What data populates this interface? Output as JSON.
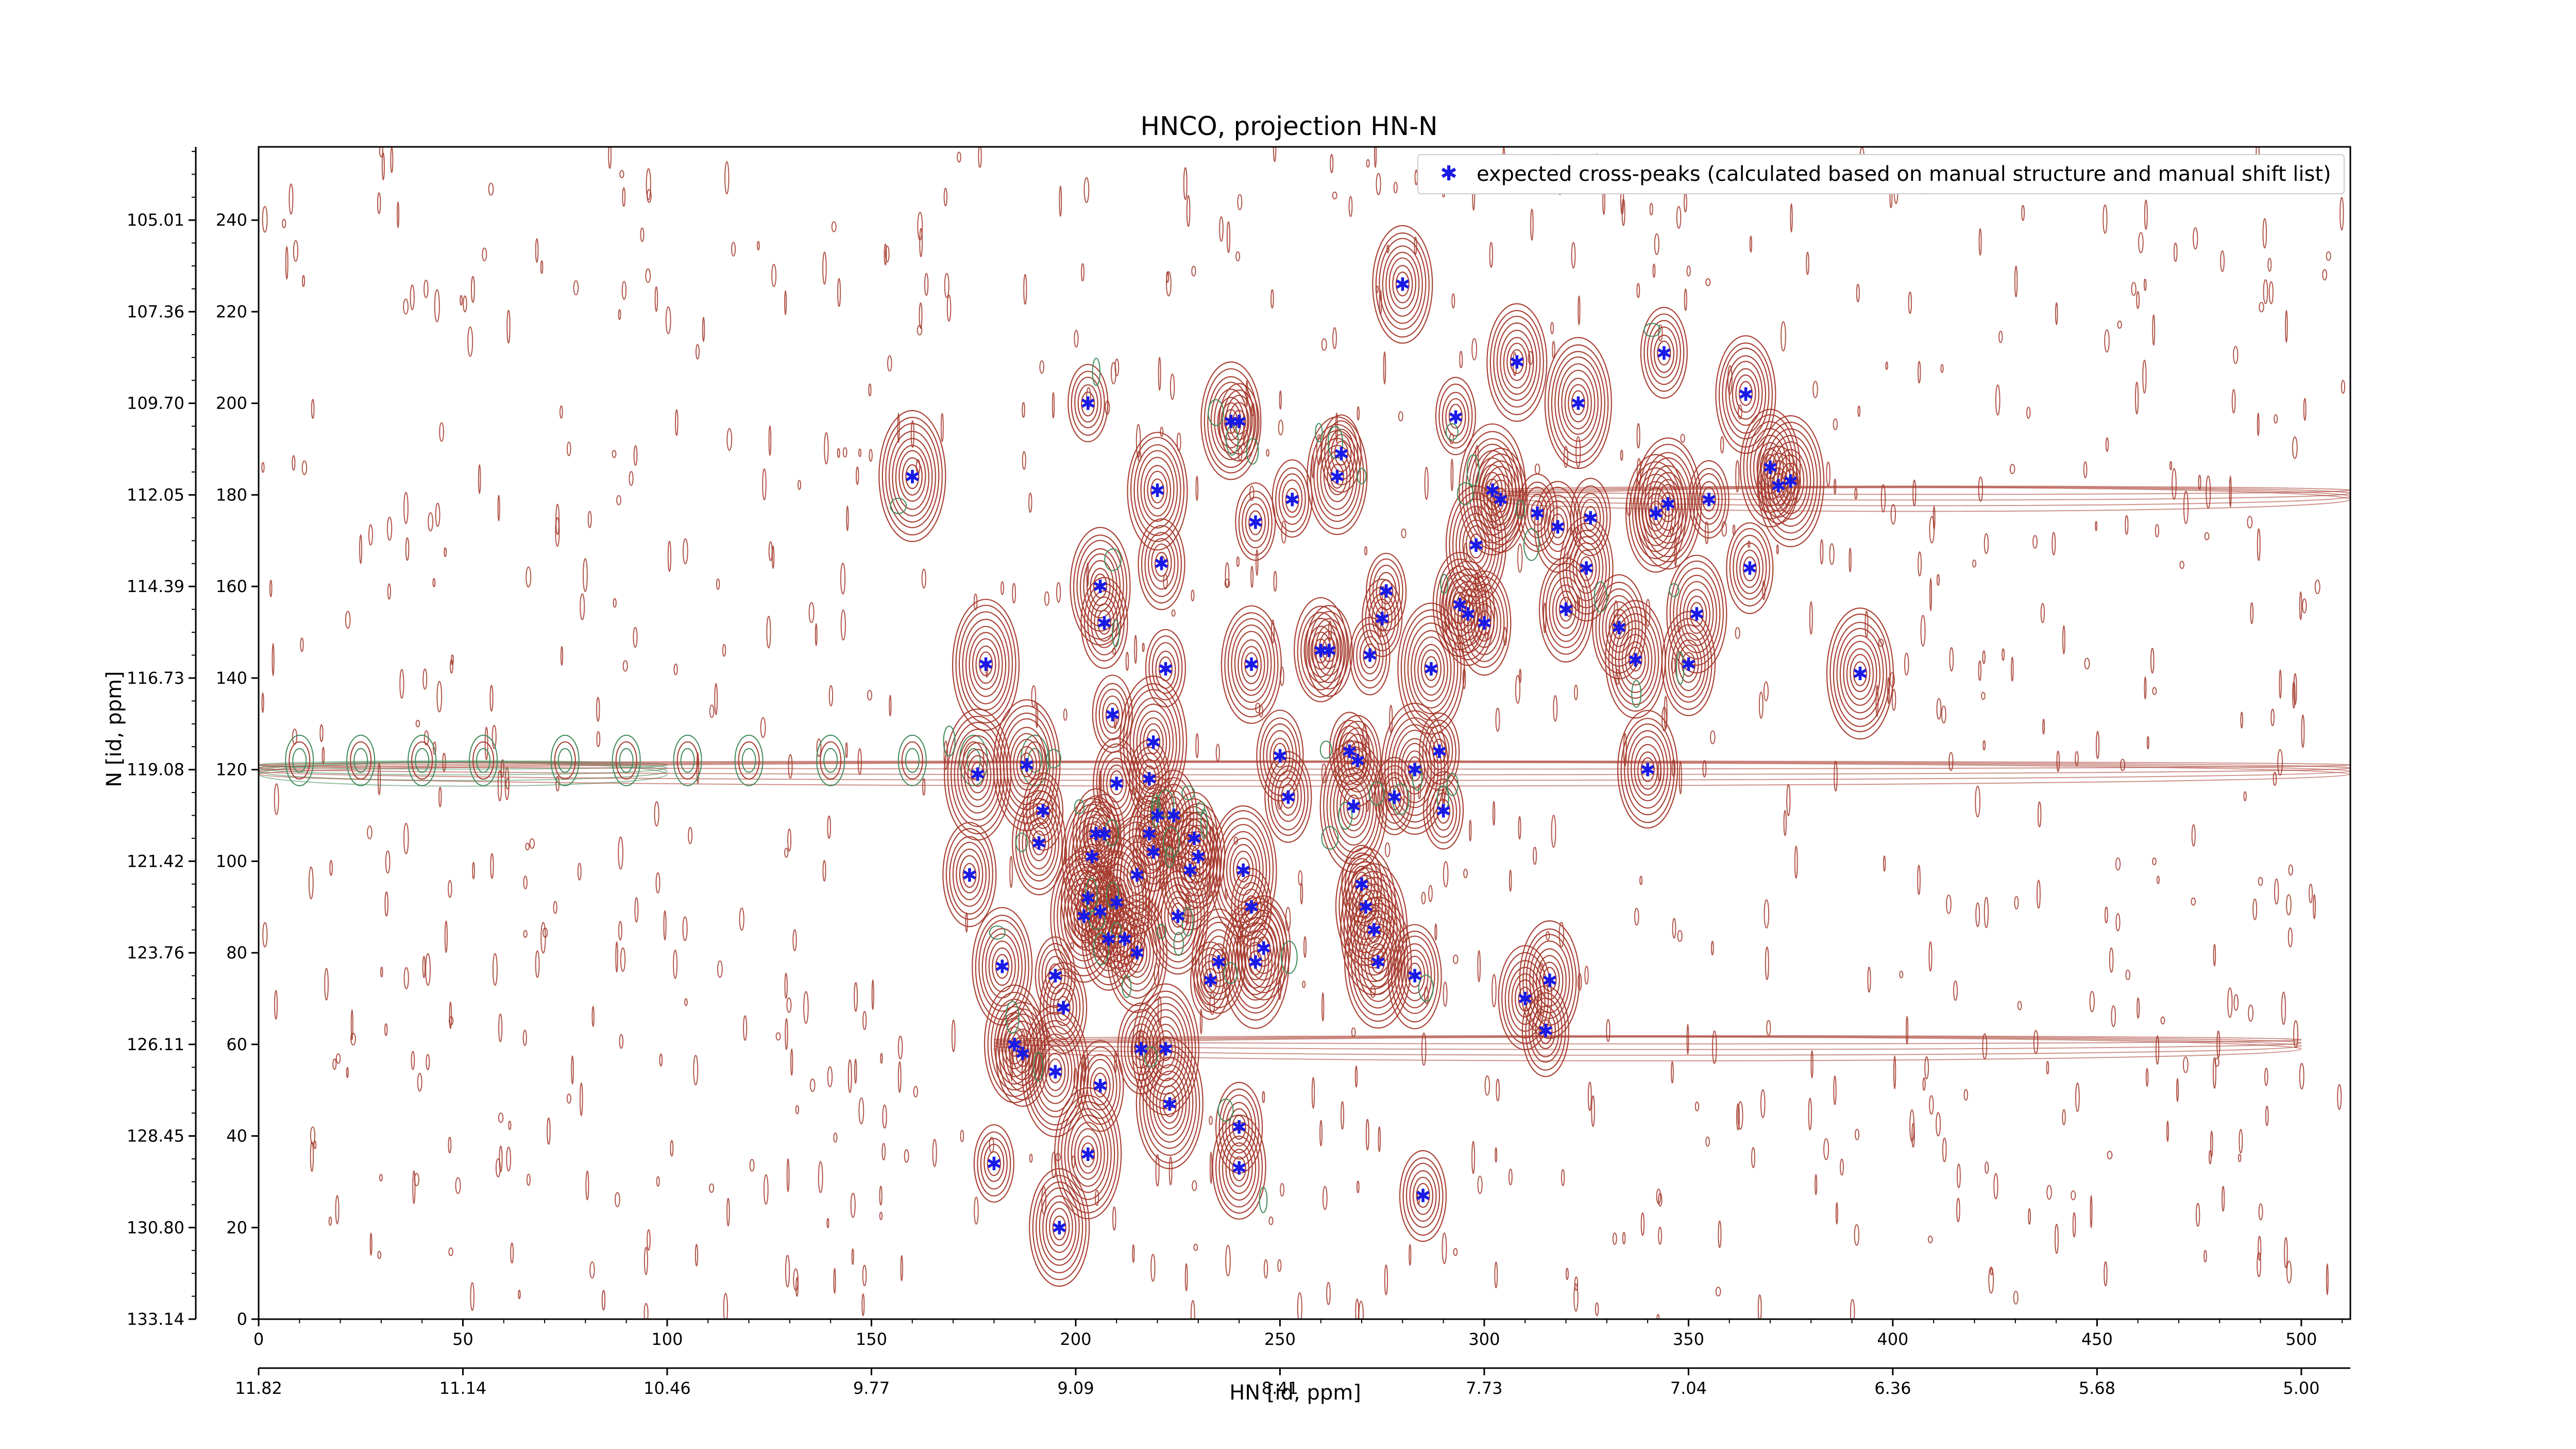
{
  "chart_data": {
    "type": "scatter",
    "title": "HNCO, projection HN-N",
    "xlabel": "HN [id, ppm]",
    "ylabel": "N [id, ppm]",
    "xlim": [
      0,
      512
    ],
    "ylim": [
      0,
      256
    ],
    "x_ticks": [
      0,
      50,
      100,
      150,
      200,
      250,
      300,
      350,
      400,
      450,
      500
    ],
    "y_ticks": [
      0,
      20,
      40,
      60,
      80,
      100,
      120,
      140,
      160,
      180,
      200,
      220,
      240
    ],
    "x_ppm_ticks": [
      "11.82",
      "11.14",
      "10.46",
      "9.77",
      "9.09",
      "8.41",
      "7.73",
      "7.04",
      "6.36",
      "5.68",
      "5.00"
    ],
    "y_ppm_ticks": [
      "133.14",
      "130.80",
      "128.45",
      "126.11",
      "123.76",
      "121.42",
      "119.08",
      "116.73",
      "114.39",
      "112.05",
      "109.70",
      "107.36",
      "105.01"
    ],
    "legend": {
      "label": "expected cross-peaks (calculated based on manual structure and manual shift list)",
      "position": "top-right"
    },
    "colors": {
      "peaks": "#1a1ae6",
      "contour_positive": "#a5392c",
      "contour_negative": "#3f8a5a"
    },
    "series": [
      {
        "name": "expected cross-peaks (calculated based on manual structure and manual shift list)",
        "points": [
          [
            160,
            184
          ],
          [
            178,
            143
          ],
          [
            176,
            119
          ],
          [
            174,
            97
          ],
          [
            182,
            77
          ],
          [
            185,
            60
          ],
          [
            187,
            58
          ],
          [
            180,
            34
          ],
          [
            188,
            121
          ],
          [
            191,
            104
          ],
          [
            192,
            111
          ],
          [
            195,
            75
          ],
          [
            195,
            54
          ],
          [
            197,
            68
          ],
          [
            196,
            20
          ],
          [
            202,
            88
          ],
          [
            203,
            92
          ],
          [
            204,
            101
          ],
          [
            205,
            106
          ],
          [
            206,
            89
          ],
          [
            207,
            106
          ],
          [
            208,
            83
          ],
          [
            210,
            91
          ],
          [
            203,
            200
          ],
          [
            203,
            36
          ],
          [
            206,
            51
          ],
          [
            206,
            160
          ],
          [
            207,
            152
          ],
          [
            209,
            132
          ],
          [
            210,
            117
          ],
          [
            212,
            83
          ],
          [
            215,
            80
          ],
          [
            215,
            97
          ],
          [
            216,
            59
          ],
          [
            218,
            106
          ],
          [
            218,
            118
          ],
          [
            219,
            102
          ],
          [
            219,
            126
          ],
          [
            220,
            110
          ],
          [
            220,
            181
          ],
          [
            221,
            165
          ],
          [
            222,
            142
          ],
          [
            222,
            59
          ],
          [
            223,
            47
          ],
          [
            224,
            110
          ],
          [
            225,
            88
          ],
          [
            228,
            98
          ],
          [
            229,
            105
          ],
          [
            230,
            101
          ],
          [
            233,
            74
          ],
          [
            240,
            42
          ],
          [
            240,
            33
          ],
          [
            235,
            78
          ],
          [
            238,
            196
          ],
          [
            240,
            196
          ],
          [
            241,
            98
          ],
          [
            243,
            90
          ],
          [
            243,
            143
          ],
          [
            244,
            174
          ],
          [
            244,
            78
          ],
          [
            246,
            81
          ],
          [
            250,
            123
          ],
          [
            252,
            114
          ],
          [
            253,
            179
          ],
          [
            260,
            146
          ],
          [
            262,
            146
          ],
          [
            264,
            184
          ],
          [
            265,
            189
          ],
          [
            267,
            124
          ],
          [
            268,
            112
          ],
          [
            269,
            122
          ],
          [
            270,
            95
          ],
          [
            271,
            90
          ],
          [
            272,
            145
          ],
          [
            273,
            85
          ],
          [
            274,
            78
          ],
          [
            275,
            153
          ],
          [
            276,
            159
          ],
          [
            278,
            114
          ],
          [
            280,
            226
          ],
          [
            283,
            120
          ],
          [
            285,
            27
          ],
          [
            283,
            75
          ],
          [
            287,
            142
          ],
          [
            289,
            124
          ],
          [
            290,
            111
          ],
          [
            293,
            197
          ],
          [
            294,
            156
          ],
          [
            296,
            154
          ],
          [
            298,
            169
          ],
          [
            300,
            152
          ],
          [
            302,
            181
          ],
          [
            304,
            179
          ],
          [
            308,
            209
          ],
          [
            310,
            70
          ],
          [
            313,
            176
          ],
          [
            315,
            63
          ],
          [
            316,
            74
          ],
          [
            323,
            200
          ],
          [
            326,
            175
          ],
          [
            333,
            151
          ],
          [
            337,
            144
          ],
          [
            342,
            176
          ],
          [
            344,
            211
          ],
          [
            345,
            178
          ],
          [
            350,
            143
          ],
          [
            352,
            154
          ],
          [
            355,
            179
          ],
          [
            364,
            202
          ],
          [
            365,
            164
          ],
          [
            370,
            186
          ],
          [
            372,
            182
          ],
          [
            375,
            183
          ],
          [
            392,
            141
          ],
          [
            340,
            120
          ],
          [
            325,
            164
          ],
          [
            318,
            173
          ],
          [
            320,
            155
          ]
        ]
      }
    ]
  }
}
